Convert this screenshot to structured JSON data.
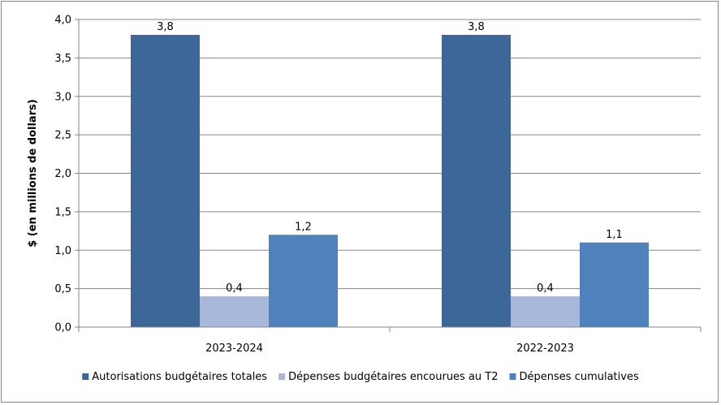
{
  "chart_data": {
    "type": "bar",
    "categories": [
      "2023-2024",
      "2022-2023"
    ],
    "series": [
      {
        "name": "Autorisations budgétaires totales",
        "values": [
          3.8,
          3.8
        ],
        "labels": [
          "3,8",
          "3,8"
        ],
        "color": "#3E6799"
      },
      {
        "name": "Dépenses budgétaires encourues au T2",
        "values": [
          0.4,
          0.4
        ],
        "labels": [
          "0,4",
          "0,4"
        ],
        "color": "#A8B8DA"
      },
      {
        "name": "Dépenses cumulatives",
        "values": [
          1.2,
          1.1
        ],
        "labels": [
          "1,2",
          "1,1"
        ],
        "color": "#4F81BD"
      }
    ],
    "ylabel": "$ (en millions de dollars)",
    "xlabel": "",
    "ylim": [
      0,
      4
    ],
    "yticks": [
      0,
      0.5,
      1,
      1.5,
      2,
      2.5,
      3,
      3.5,
      4
    ],
    "ytick_labels": [
      "0,0",
      "0,5",
      "1,0",
      "1,5",
      "2,0",
      "2,5",
      "3,0",
      "3,5",
      "4,0"
    ],
    "grid": true,
    "legend_position": "bottom",
    "gridline_color": "#868686"
  }
}
